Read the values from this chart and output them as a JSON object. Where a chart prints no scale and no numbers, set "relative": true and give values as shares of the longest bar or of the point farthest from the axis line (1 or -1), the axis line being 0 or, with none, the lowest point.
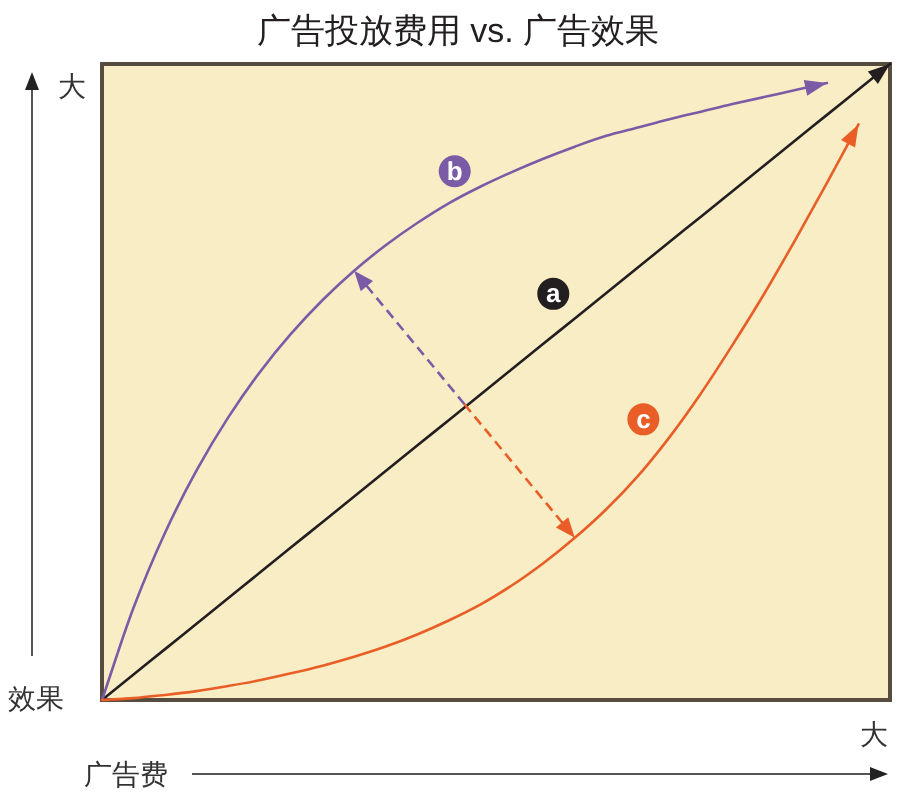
{
  "chart_data": {
    "type": "line",
    "title": "广告投放费用 vs. 广告效果",
    "xlabel": "广告费",
    "ylabel": "效果",
    "annotations": [
      "大",
      "大"
    ],
    "categories": [
      null,
      null,
      null,
      null,
      null,
      null,
      null,
      null,
      null,
      null,
      null,
      null,
      null,
      null,
      null,
      null,
      null,
      null,
      null,
      null,
      null,
      null,
      null,
      null,
      null,
      null
    ],
    "relative": true,
    "line_style": "solid",
    "series": [
      {
        "name": "a",
        "color": "#231f20",
        "values": [
          0,
          0.04,
          0.08,
          0.12,
          0.16,
          0.2,
          0.24,
          0.28,
          0.32,
          0.36,
          0.4,
          0.44,
          0.48,
          0.52,
          0.56,
          0.6,
          0.64,
          0.68,
          0.72,
          0.76,
          0.8,
          0.84,
          0.88,
          0.92,
          0.96,
          1
        ]
      },
      {
        "name": "b",
        "color": "#7c5ba6",
        "values": [
          0,
          0.145,
          0.263,
          0.361,
          0.444,
          0.515,
          0.576,
          0.629,
          0.675,
          0.715,
          0.75,
          0.781,
          0.807,
          0.83,
          0.851,
          0.87,
          0.887,
          0.9,
          0.913,
          0.925,
          0.937,
          0.948,
          0.959,
          0.97,
          null,
          null
        ]
      },
      {
        "name": "c",
        "color": "#e95d26",
        "values": [
          0,
          0.003,
          0.008,
          0.014,
          0.022,
          0.031,
          0.042,
          0.054,
          0.068,
          0.084,
          0.103,
          0.125,
          0.15,
          0.18,
          0.215,
          0.255,
          0.3,
          0.352,
          0.413,
          0.482,
          0.558,
          0.638,
          0.724,
          0.813,
          0.905,
          null
        ]
      }
    ]
  }
}
